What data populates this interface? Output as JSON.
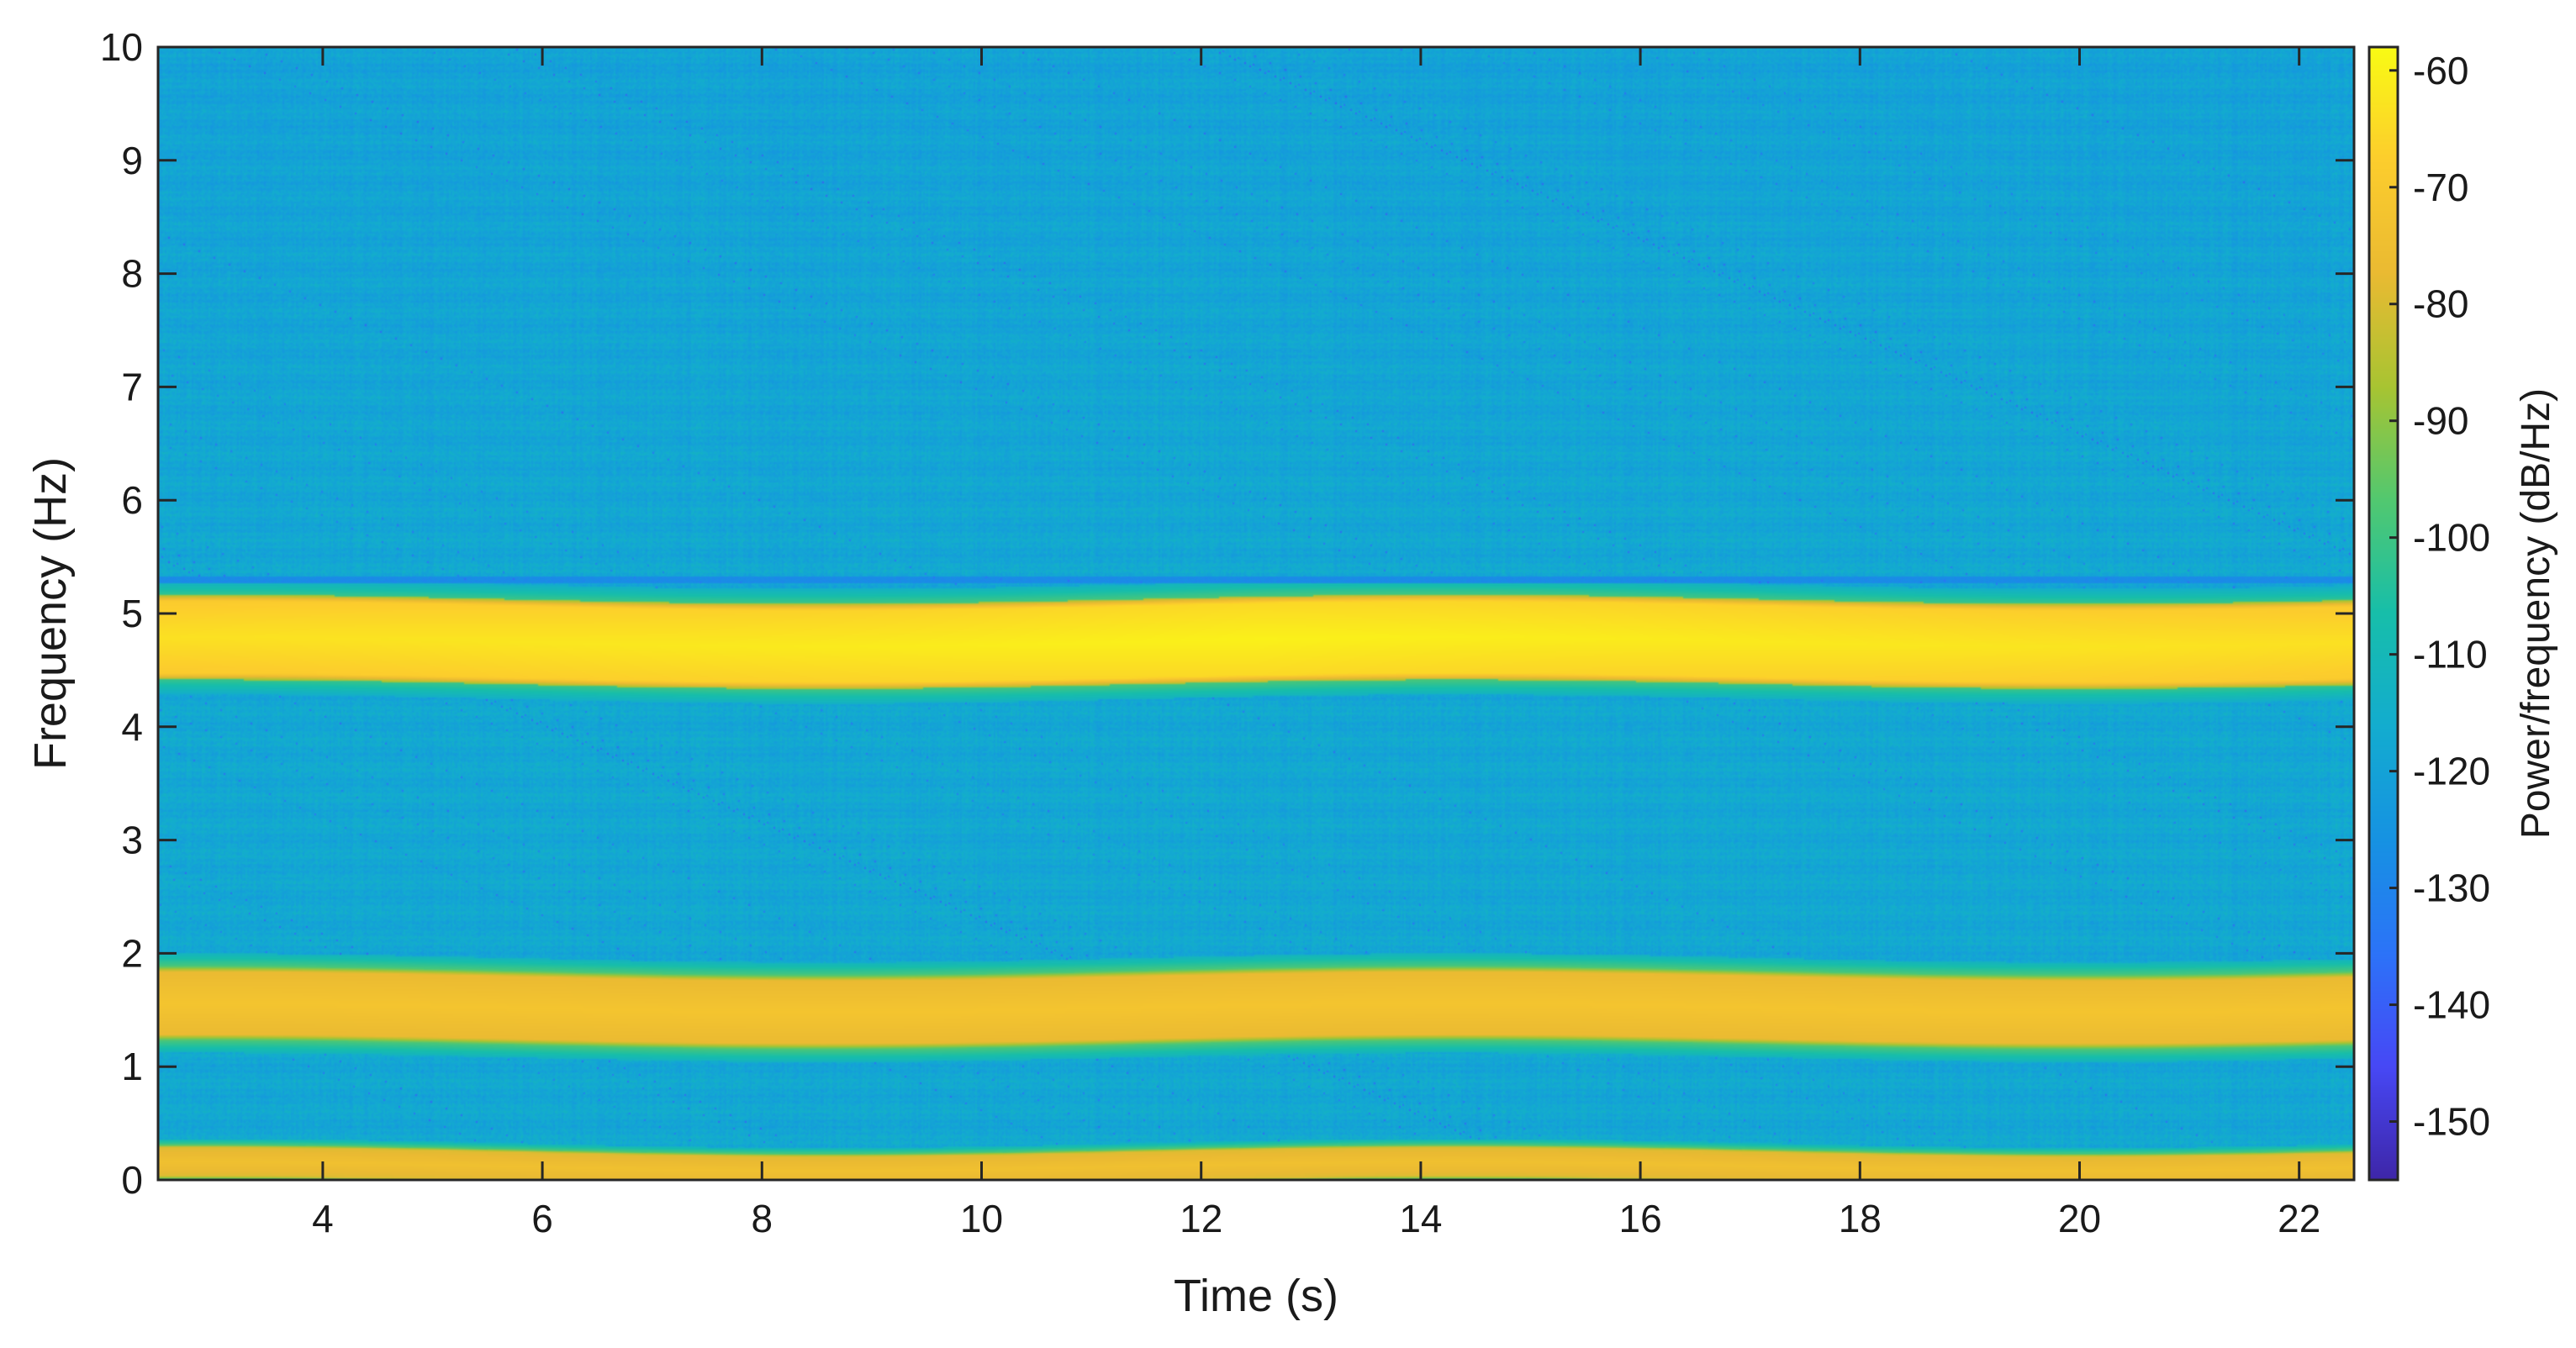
{
  "chart_data": {
    "type": "heatmap",
    "title": "",
    "xlabel": "Time (s)",
    "ylabel": "Frequency (Hz)",
    "colorbar_label": "Power/frequency (dB/Hz)",
    "colormap": "parula",
    "xlim": [
      2.5,
      22.5
    ],
    "ylim": [
      0,
      10
    ],
    "clim": [
      -155,
      -58
    ],
    "x_ticks": [
      4,
      6,
      8,
      10,
      12,
      14,
      16,
      18,
      20,
      22
    ],
    "y_ticks": [
      0,
      1,
      2,
      3,
      4,
      5,
      6,
      7,
      8,
      9,
      10
    ],
    "colorbar_ticks": [
      -60,
      -70,
      -80,
      -90,
      -100,
      -110,
      -120,
      -130,
      -140,
      -150
    ],
    "colorbar_position": "right",
    "grid": false,
    "background_level_db": -118,
    "bands": [
      {
        "freq_low": 4.35,
        "freq_high": 5.1,
        "center": 4.75,
        "peak_db": -60
      },
      {
        "freq_low": 1.2,
        "freq_high": 1.85,
        "center": 1.52,
        "peak_db": -72
      },
      {
        "freq_low": 0.0,
        "freq_high": 0.3,
        "center": 0.12,
        "peak_db": -74
      }
    ],
    "narrow_lines": [
      {
        "freq": 5.3,
        "level_db": -128
      }
    ]
  }
}
